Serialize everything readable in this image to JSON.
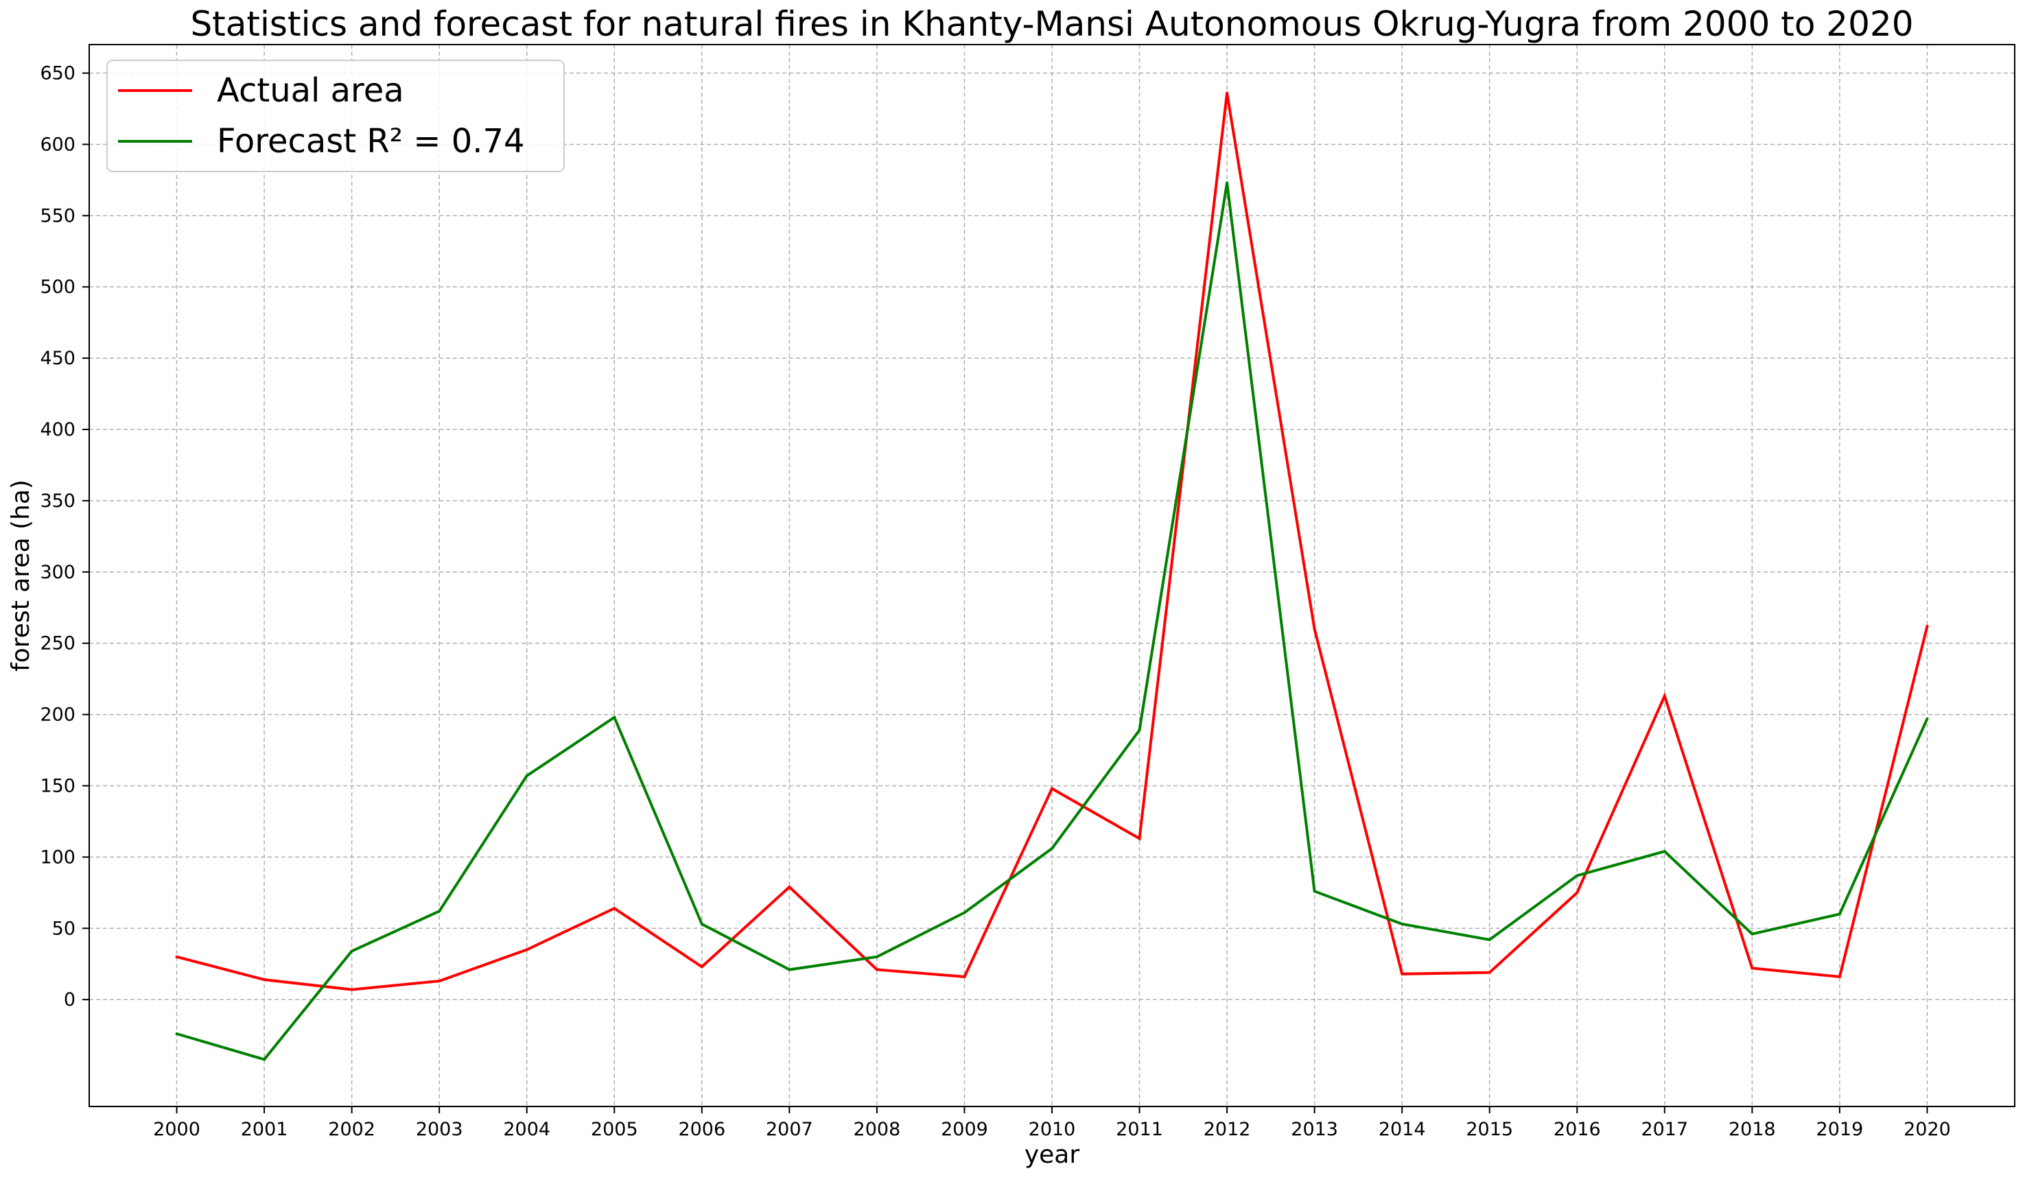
{
  "chart_data": {
    "type": "line",
    "title": "Statistics and forecast for natural fires in Khanty-Mansi Autonomous Okrug-Yugra from 2000 to 2020",
    "xlabel": "year",
    "ylabel": "forest area (ha)",
    "x": [
      2000,
      2001,
      2002,
      2003,
      2004,
      2005,
      2006,
      2007,
      2008,
      2009,
      2010,
      2011,
      2012,
      2013,
      2014,
      2015,
      2016,
      2017,
      2018,
      2019,
      2020
    ],
    "x_tick_labels": [
      "2000",
      "2001",
      "2002",
      "2003",
      "2004",
      "2005",
      "2006",
      "2007",
      "2008",
      "2009",
      "2010",
      "2011",
      "2012",
      "2013",
      "2014",
      "2015",
      "2016",
      "2017",
      "2018",
      "2019",
      "2020"
    ],
    "y_ticks": [
      0,
      50,
      100,
      150,
      200,
      250,
      300,
      350,
      400,
      450,
      500,
      550,
      600,
      650
    ],
    "y_tick_labels": [
      "0",
      "50",
      "100",
      "150",
      "200",
      "250",
      "300",
      "350",
      "400",
      "450",
      "500",
      "550",
      "600",
      "650"
    ],
    "xlim": [
      1999,
      2021
    ],
    "ylim": [
      -75,
      670
    ],
    "grid": true,
    "legend_position": "top-left",
    "series": [
      {
        "name": "Actual area",
        "color": "#ff0000",
        "values": [
          30,
          14,
          7,
          13,
          35,
          64,
          23,
          79,
          21,
          16,
          148,
          113,
          636,
          260,
          18,
          19,
          75,
          213,
          22,
          16,
          262
        ]
      },
      {
        "name": "Forecast  R² = 0.74",
        "color": "#008000",
        "values": [
          -24,
          -42,
          34,
          62,
          157,
          198,
          53,
          21,
          30,
          61,
          106,
          189,
          573,
          76,
          53,
          42,
          87,
          104,
          46,
          60,
          197
        ]
      }
    ]
  }
}
